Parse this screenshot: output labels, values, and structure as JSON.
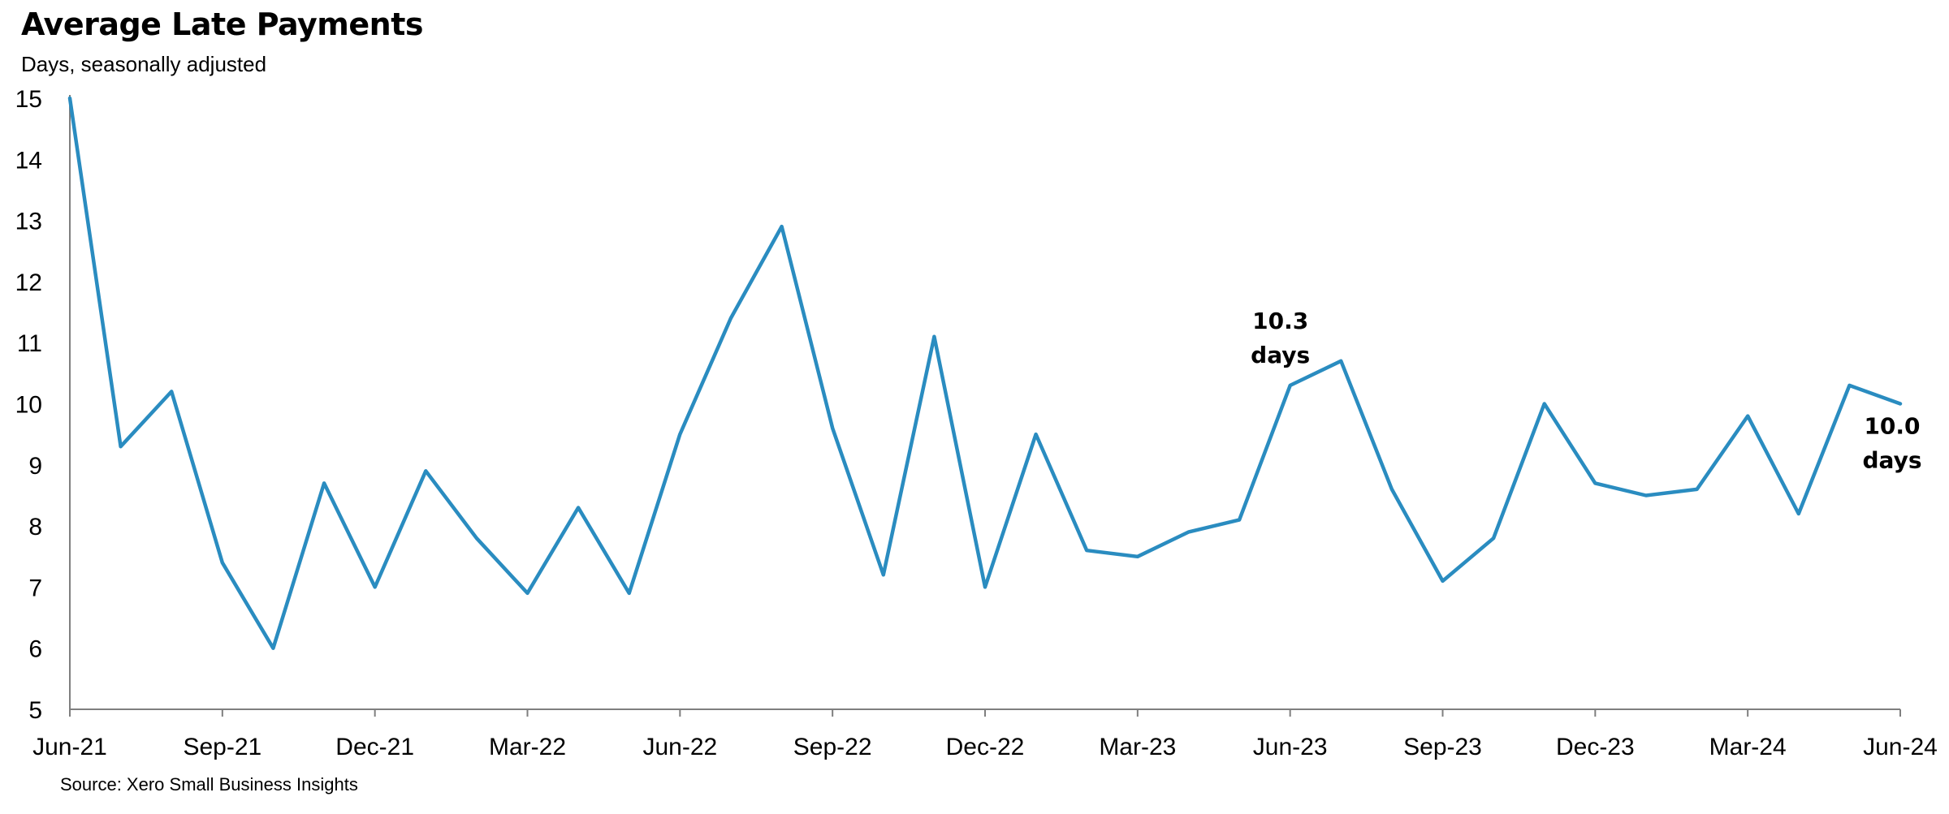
{
  "chart_data": {
    "type": "line",
    "title": "Average Late Payments",
    "subtitle": "Days, seasonally adjusted",
    "source": "Source: Xero Small Business Insights",
    "xlabel": "",
    "ylabel": "",
    "ylim": [
      5,
      15
    ],
    "y_ticks": [
      "5",
      "6",
      "7",
      "8",
      "9",
      "10",
      "11",
      "12",
      "13",
      "14",
      "15"
    ],
    "x_tick_labels": [
      "Jun-21",
      "Sep-21",
      "Dec-21",
      "Mar-22",
      "Jun-22",
      "Sep-22",
      "Dec-22",
      "Mar-23",
      "Jun-23",
      "Sep-23",
      "Dec-23",
      "Mar-24",
      "Jun-24"
    ],
    "x": [
      "Jun-21",
      "Jul-21",
      "Aug-21",
      "Sep-21",
      "Oct-21",
      "Nov-21",
      "Dec-21",
      "Jan-22",
      "Feb-22",
      "Mar-22",
      "Apr-22",
      "May-22",
      "Jun-22",
      "Jul-22",
      "Aug-22",
      "Sep-22",
      "Oct-22",
      "Nov-22",
      "Dec-22",
      "Jan-23",
      "Feb-23",
      "Mar-23",
      "Apr-23",
      "May-23",
      "Jun-23",
      "Jul-23",
      "Aug-23",
      "Sep-23",
      "Oct-23",
      "Nov-23",
      "Dec-23",
      "Jan-24",
      "Feb-24",
      "Mar-24",
      "Apr-24",
      "May-24",
      "Jun-24"
    ],
    "series": [
      {
        "name": "",
        "color": "#2a8cc0",
        "values": [
          15.0,
          9.3,
          10.2,
          7.4,
          6.0,
          8.7,
          7.0,
          8.9,
          7.8,
          6.9,
          8.3,
          6.9,
          9.5,
          11.4,
          12.9,
          9.6,
          7.2,
          11.1,
          7.0,
          9.5,
          7.6,
          7.5,
          7.9,
          8.1,
          10.3,
          10.7,
          8.6,
          7.1,
          7.8,
          10.0,
          8.7,
          8.5,
          8.6,
          9.8,
          8.2,
          10.3,
          10.0
        ]
      }
    ],
    "annotations": [
      {
        "x": "Jun-23",
        "value_text": "10.3",
        "unit_text": "days"
      },
      {
        "x": "Jun-24",
        "value_text": "10.0",
        "unit_text": "days"
      }
    ],
    "grid": false,
    "legend": "none"
  }
}
